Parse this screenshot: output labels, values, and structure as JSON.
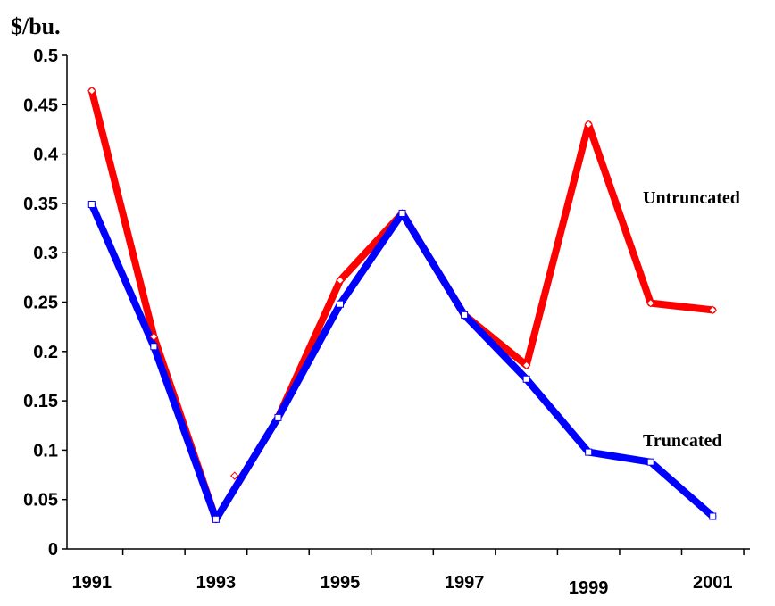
{
  "chart_data": {
    "type": "line",
    "title": "",
    "xlabel": "",
    "ylabel": "$/bu.",
    "ylim": [
      0,
      0.5
    ],
    "yticks": [
      "0",
      "0.05",
      "0.1",
      "0.15",
      "0.2",
      "0.25",
      "0.3",
      "0.35",
      "0.4",
      "0.45",
      "0.5"
    ],
    "x": [
      1991,
      1992,
      1993,
      1994,
      1995,
      1996,
      1997,
      1998,
      1999,
      2000,
      2001
    ],
    "xtick_labels": [
      "1991",
      "1993",
      "1995",
      "1997",
      "1999",
      "2001"
    ],
    "grid": false,
    "series": [
      {
        "name": "Untruncated",
        "color": "#ff0000",
        "marker": "diamond",
        "values": [
          0.464,
          0.215,
          0.03,
          0.133,
          0.272,
          0.34,
          0.237,
          0.186,
          0.43,
          0.249,
          0.242
        ]
      },
      {
        "name": "Truncated",
        "color": "#0000ff",
        "marker": "square",
        "values": [
          0.349,
          0.205,
          0.03,
          0.133,
          0.248,
          0.34,
          0.237,
          0.172,
          0.098,
          0.088,
          0.033
        ]
      }
    ],
    "annotations": [
      {
        "marker": "diamond",
        "color": "#ff0000",
        "x": 1993.3,
        "y": 0.074
      }
    ]
  }
}
